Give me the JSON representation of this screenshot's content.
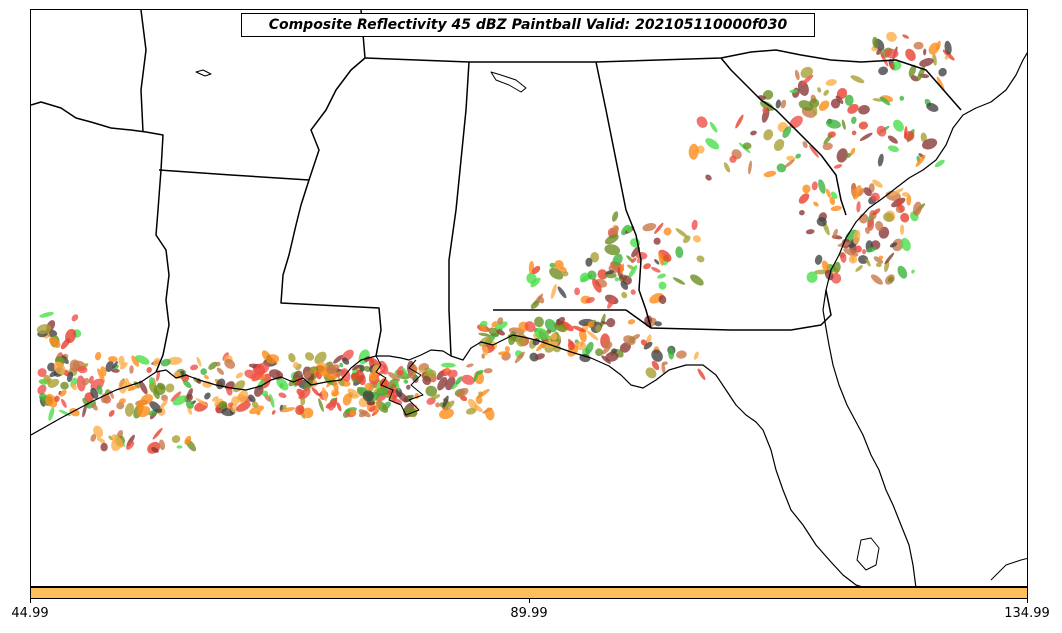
{
  "title": "Composite Reflectivity 45 dBZ Paintball Valid: 202105110000f030",
  "colorbar": {
    "color": "#fdbe5c",
    "ticks": [
      "44.99",
      "89.99",
      "134.99"
    ]
  },
  "paintball_colors": [
    "#e8412e",
    "#ff8c1a",
    "#fdae4a",
    "#8b3a3a",
    "#6b8e23",
    "#3cb33c",
    "#4ade4a",
    "#a9a036",
    "#444444",
    "#f0504a",
    "#c87848"
  ],
  "map_style": {
    "line_color": "#000000",
    "background": "#ffffff"
  }
}
